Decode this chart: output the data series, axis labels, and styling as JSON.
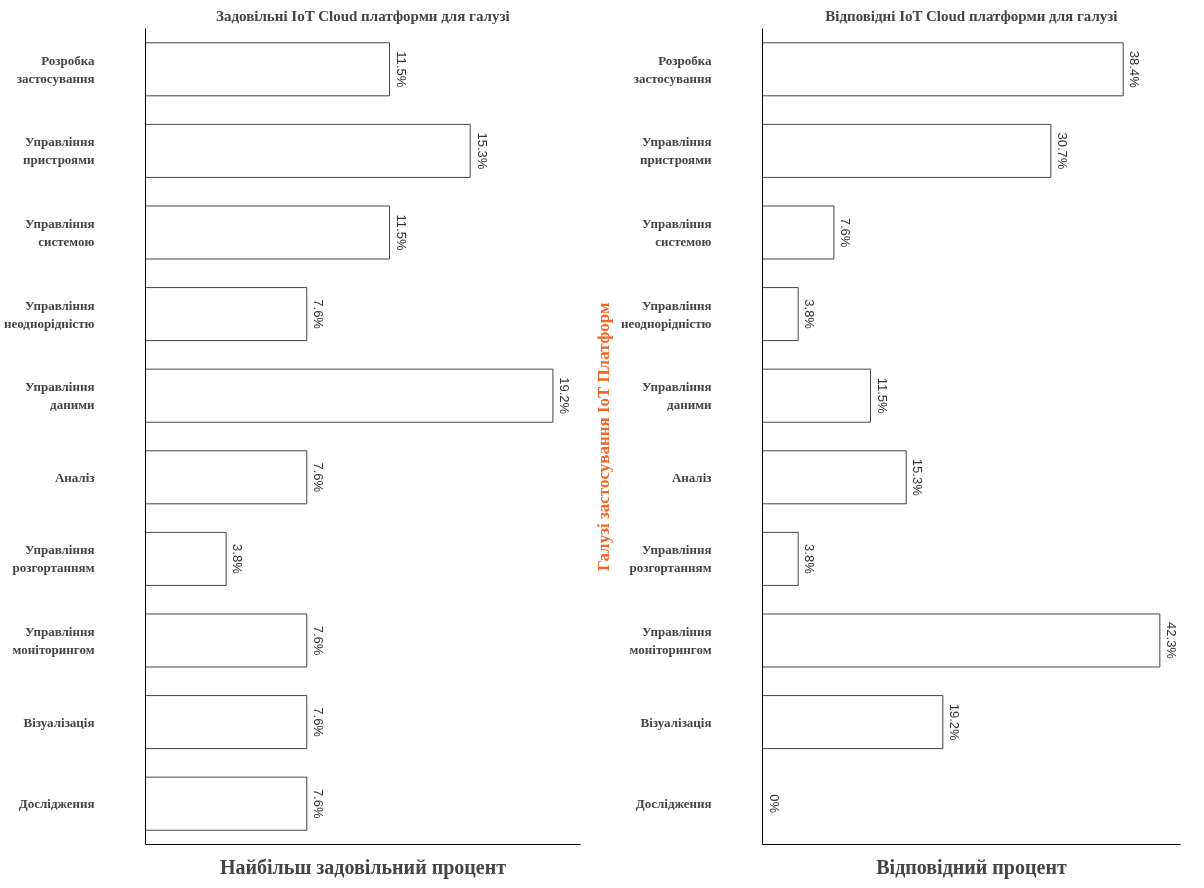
{
  "chart_data": [
    {
      "type": "bar",
      "orientation": "horizontal",
      "title": "Задовільні IoT Cloud платформи для галузі",
      "xlabel": "Найбільш задовільний процент",
      "categories": [
        "Розробка\nзастосування",
        "Управління\nпристроями",
        "Управління\nсистемою",
        "Управління\nнеоднорідністю",
        "Управління\nданими",
        "Аналіз",
        "Управління\nрозгортанням",
        "Управління\nмоніторингом",
        "Візуалізація",
        "Дослідження"
      ],
      "values": [
        11.5,
        15.3,
        11.5,
        7.6,
        19.2,
        7.6,
        3.8,
        7.6,
        7.6,
        7.6
      ],
      "value_labels": [
        "11.5%",
        "15.3%",
        "11.5%",
        "7.6%",
        "19.2%",
        "7.6%",
        "3.8%",
        "7.6%",
        "7.6%",
        "7.6%"
      ],
      "color": "#ffffff",
      "xlim": [
        0,
        20.5
      ],
      "tick_labels": "y",
      "grid": false
    },
    {
      "type": "bar",
      "orientation": "horizontal",
      "title": "Відповідні IoT Cloud платформи для галузі",
      "xlabel": "Відповідний процент",
      "ylabel": "Галузі застосування IoT Платформ",
      "categories": [
        "Розробка\nзастосування",
        "Управління\nпристроями",
        "Управління\nсистемою",
        "Управління\nнеоднорідністю",
        "Управління\nданими",
        "Аналіз",
        "Управління\nрозгортанням",
        "Управління\nмоніторингом",
        "Візуалізація",
        "Дослідження"
      ],
      "values": [
        38.4,
        30.7,
        7.6,
        3.8,
        11.5,
        15.3,
        3.8,
        42.3,
        19.2,
        0
      ],
      "value_labels": [
        "38.4%",
        "30.7%",
        "7.6%",
        "3.8%",
        "11.5%",
        "15.3%",
        "3.8%",
        "42.3%",
        "19.2%",
        "0%"
      ],
      "color": "#ffffff",
      "xlim": [
        0,
        44.5
      ],
      "tick_labels": "y",
      "grid": false
    }
  ]
}
